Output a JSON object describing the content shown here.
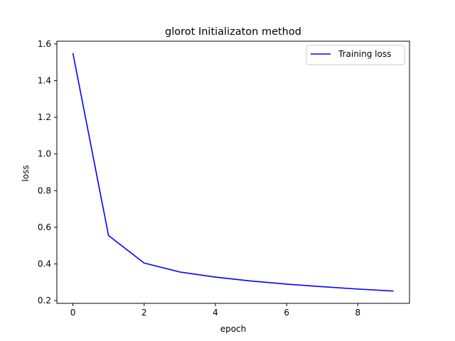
{
  "chart_data": {
    "type": "line",
    "title": "glorot Initializaton method",
    "xlabel": "epoch",
    "ylabel": "loss",
    "xlim": [
      -0.45,
      9.45
    ],
    "ylim": [
      0.185,
      1.615
    ],
    "xticks": [
      0,
      2,
      4,
      6,
      8
    ],
    "yticks": [
      0.2,
      0.4,
      0.6,
      0.8,
      1.0,
      1.2,
      1.4,
      1.6
    ],
    "xtick_labels": [
      "0",
      "2",
      "4",
      "6",
      "8"
    ],
    "ytick_labels": [
      "0.2",
      "0.4",
      "0.6",
      "0.8",
      "1.0",
      "1.2",
      "1.4",
      "1.6"
    ],
    "grid": false,
    "legend_position": "top-right",
    "series": [
      {
        "name": "Training loss",
        "color": "#0000ff",
        "x": [
          0,
          1,
          2,
          3,
          4,
          5,
          6,
          7,
          8,
          9
        ],
        "y": [
          1.55,
          0.555,
          0.405,
          0.356,
          0.328,
          0.307,
          0.29,
          0.276,
          0.263,
          0.252
        ]
      }
    ]
  }
}
